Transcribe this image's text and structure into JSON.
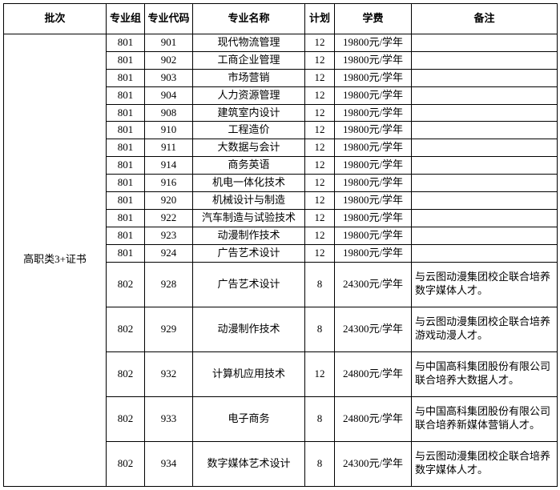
{
  "headers": {
    "batch": "批次",
    "group": "专业组",
    "code": "专业代码",
    "name": "专业名称",
    "plan": "计划",
    "fee": "学费",
    "remark": "备注"
  },
  "batch_label": "高职类3+证书",
  "rows": [
    {
      "group": "801",
      "code": "901",
      "name": "现代物流管理",
      "plan": "12",
      "fee": "19800元/学年",
      "remark": "",
      "tall": false
    },
    {
      "group": "801",
      "code": "902",
      "name": "工商企业管理",
      "plan": "12",
      "fee": "19800元/学年",
      "remark": "",
      "tall": false
    },
    {
      "group": "801",
      "code": "903",
      "name": "市场营销",
      "plan": "12",
      "fee": "19800元/学年",
      "remark": "",
      "tall": false
    },
    {
      "group": "801",
      "code": "904",
      "name": "人力资源管理",
      "plan": "12",
      "fee": "19800元/学年",
      "remark": "",
      "tall": false
    },
    {
      "group": "801",
      "code": "908",
      "name": "建筑室内设计",
      "plan": "12",
      "fee": "19800元/学年",
      "remark": "",
      "tall": false
    },
    {
      "group": "801",
      "code": "910",
      "name": "工程造价",
      "plan": "12",
      "fee": "19800元/学年",
      "remark": "",
      "tall": false
    },
    {
      "group": "801",
      "code": "911",
      "name": "大数据与会计",
      "plan": "12",
      "fee": "19800元/学年",
      "remark": "",
      "tall": false
    },
    {
      "group": "801",
      "code": "914",
      "name": "商务英语",
      "plan": "12",
      "fee": "19800元/学年",
      "remark": "",
      "tall": false
    },
    {
      "group": "801",
      "code": "916",
      "name": "机电一体化技术",
      "plan": "12",
      "fee": "19800元/学年",
      "remark": "",
      "tall": false
    },
    {
      "group": "801",
      "code": "920",
      "name": "机械设计与制造",
      "plan": "12",
      "fee": "19800元/学年",
      "remark": "",
      "tall": false
    },
    {
      "group": "801",
      "code": "922",
      "name": "汽车制造与试验技术",
      "plan": "12",
      "fee": "19800元/学年",
      "remark": "",
      "tall": false
    },
    {
      "group": "801",
      "code": "923",
      "name": "动漫制作技术",
      "plan": "12",
      "fee": "19800元/学年",
      "remark": "",
      "tall": false
    },
    {
      "group": "801",
      "code": "924",
      "name": "广告艺术设计",
      "plan": "12",
      "fee": "19800元/学年",
      "remark": "",
      "tall": false
    },
    {
      "group": "802",
      "code": "928",
      "name": "广告艺术设计",
      "plan": "8",
      "fee": "24300元/学年",
      "remark": "与云图动漫集团校企联合培养数字媒体人才。",
      "tall": true
    },
    {
      "group": "802",
      "code": "929",
      "name": "动漫制作技术",
      "plan": "8",
      "fee": "24300元/学年",
      "remark": "与云图动漫集团校企联合培养游戏动漫人才。",
      "tall": true
    },
    {
      "group": "802",
      "code": "932",
      "name": "计算机应用技术",
      "plan": "12",
      "fee": "24800元/学年",
      "remark": "与中国高科集团股份有限公司联合培养大数据人才。",
      "tall": true
    },
    {
      "group": "802",
      "code": "933",
      "name": "电子商务",
      "plan": "8",
      "fee": "24800元/学年",
      "remark": "与中国高科集团股份有限公司联合培养新媒体营销人才。",
      "tall": true
    },
    {
      "group": "802",
      "code": "934",
      "name": "数字媒体艺术设计",
      "plan": "8",
      "fee": "24300元/学年",
      "remark": "与云图动漫集团校企联合培养数字媒体人才。",
      "tall": true
    }
  ]
}
